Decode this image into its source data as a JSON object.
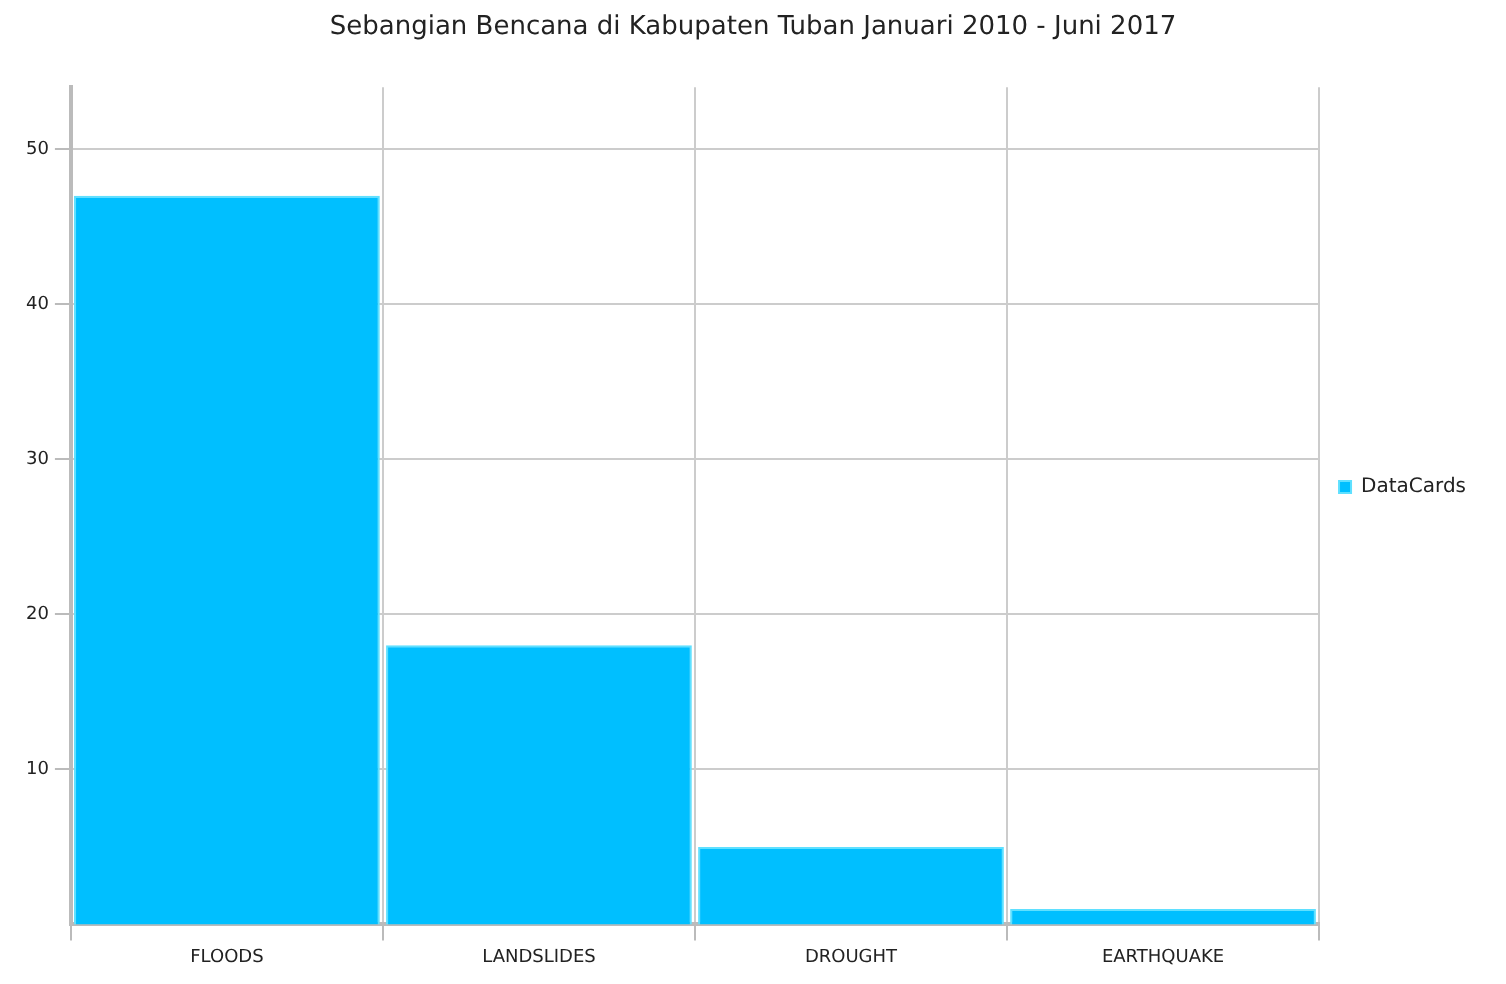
{
  "chart_data": {
    "type": "bar",
    "title": "Sebangian Bencana di Kabupaten Tuban Januari 2010 - Juni 2017",
    "categories": [
      "FLOODS",
      "LANDSLIDES",
      "DROUGHT",
      "EARTHQUAKE"
    ],
    "series": [
      {
        "name": "DataCards",
        "color": "#00bfff",
        "values": [
          47,
          18,
          5,
          1
        ]
      }
    ],
    "ylim": [
      0,
      54
    ],
    "yticks": [
      10,
      20,
      30,
      40,
      50
    ],
    "grid": true,
    "legend": "right"
  }
}
